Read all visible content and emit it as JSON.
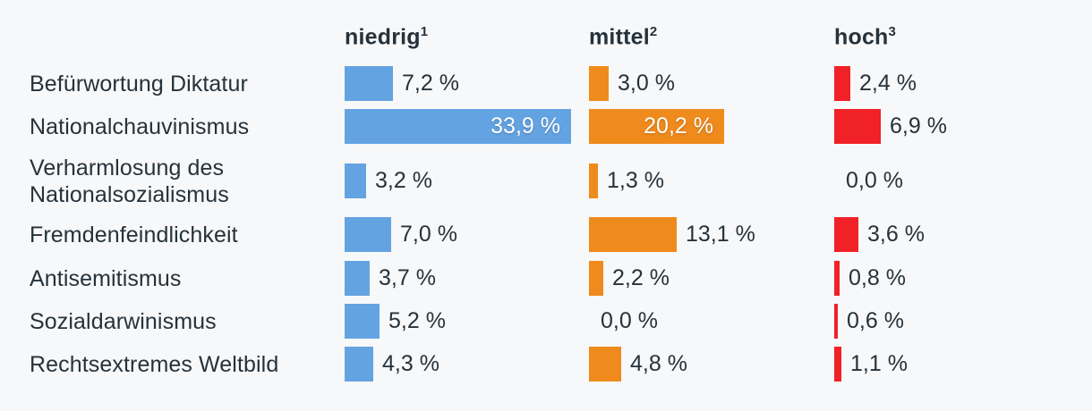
{
  "chart": {
    "background_color": "#f7f8f9",
    "text_color": "#26323b"
  },
  "chart_data": {
    "type": "bar",
    "orientation": "horizontal",
    "title": "",
    "unit": "%",
    "decimal_separator": ",",
    "value_suffix": " %",
    "legend_position": "column-headers",
    "grid": false,
    "xlim": [
      0,
      36.5
    ],
    "columns": [
      {
        "label": "niedrig",
        "sup": "1",
        "color": "#64a3e2"
      },
      {
        "label": "mittel",
        "sup": "2",
        "color": "#ef8a1c"
      },
      {
        "label": "hoch",
        "sup": "3",
        "color": "#f02127"
      }
    ],
    "categories": [
      "Befürwortung Diktatur",
      "Nationalchauvinismus",
      "Verharmlosung des Nationalsozialismus",
      "Fremdenfeindlichkeit",
      "Antisemitismus",
      "Sozialdarwinismus",
      "Rechtsextremes Weltbild"
    ],
    "series": [
      {
        "name": "niedrig",
        "color": "#64a3e2",
        "values": [
          7.2,
          33.9,
          3.2,
          7.0,
          3.7,
          5.2,
          4.3
        ],
        "labels": [
          "7,2 %",
          "33,9 %",
          "3,2 %",
          "7,0 %",
          "3,7 %",
          "5,2 %",
          "4,3 %"
        ]
      },
      {
        "name": "mittel",
        "color": "#ef8a1c",
        "values": [
          3.0,
          20.2,
          1.3,
          13.1,
          2.2,
          0.0,
          4.8
        ],
        "labels": [
          "3,0 %",
          "20,2 %",
          "1,3 %",
          "13,1 %",
          "2,2 %",
          "0,0 %",
          "4,8 %"
        ]
      },
      {
        "name": "hoch",
        "color": "#f02127",
        "values": [
          2.4,
          6.9,
          0.0,
          3.6,
          0.8,
          0.6,
          1.1
        ],
        "labels": [
          "2,4 %",
          "6,9 %",
          "0,0 %",
          "3,6 %",
          "0,8 %",
          "0,6 %",
          "1,1 %"
        ]
      }
    ]
  }
}
